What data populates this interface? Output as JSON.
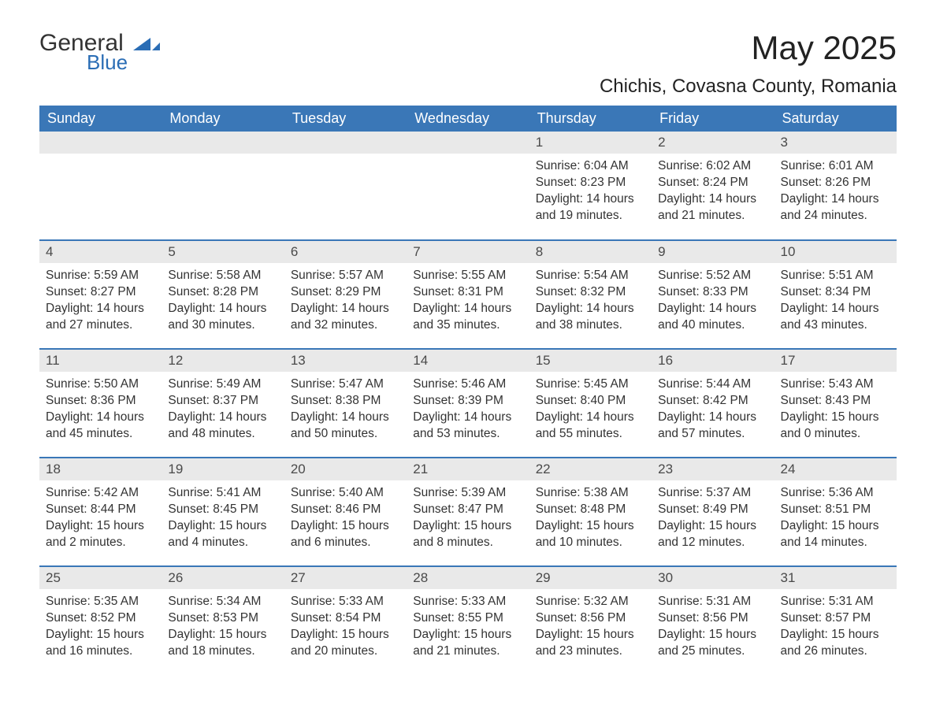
{
  "brand": {
    "name_main": "General",
    "name_sub": "Blue",
    "shape_color": "#2a6db5"
  },
  "title": {
    "month_year": "May 2025",
    "location": "Chichis, Covasna County, Romania"
  },
  "colors": {
    "header_bg": "#3a77b7",
    "header_text": "#ffffff",
    "daynum_bg": "#e9e9e9",
    "daynum_text": "#4a4a4a",
    "body_text": "#333333",
    "page_bg": "#ffffff",
    "week_border": "#3a77b7"
  },
  "weekdays": [
    "Sunday",
    "Monday",
    "Tuesday",
    "Wednesday",
    "Thursday",
    "Friday",
    "Saturday"
  ],
  "weeks": [
    [
      {
        "blank": true
      },
      {
        "blank": true
      },
      {
        "blank": true
      },
      {
        "blank": true
      },
      {
        "day": "1",
        "sunrise": "Sunrise: 6:04 AM",
        "sunset": "Sunset: 8:23 PM",
        "daylight": "Daylight: 14 hours and 19 minutes."
      },
      {
        "day": "2",
        "sunrise": "Sunrise: 6:02 AM",
        "sunset": "Sunset: 8:24 PM",
        "daylight": "Daylight: 14 hours and 21 minutes."
      },
      {
        "day": "3",
        "sunrise": "Sunrise: 6:01 AM",
        "sunset": "Sunset: 8:26 PM",
        "daylight": "Daylight: 14 hours and 24 minutes."
      }
    ],
    [
      {
        "day": "4",
        "sunrise": "Sunrise: 5:59 AM",
        "sunset": "Sunset: 8:27 PM",
        "daylight": "Daylight: 14 hours and 27 minutes."
      },
      {
        "day": "5",
        "sunrise": "Sunrise: 5:58 AM",
        "sunset": "Sunset: 8:28 PM",
        "daylight": "Daylight: 14 hours and 30 minutes."
      },
      {
        "day": "6",
        "sunrise": "Sunrise: 5:57 AM",
        "sunset": "Sunset: 8:29 PM",
        "daylight": "Daylight: 14 hours and 32 minutes."
      },
      {
        "day": "7",
        "sunrise": "Sunrise: 5:55 AM",
        "sunset": "Sunset: 8:31 PM",
        "daylight": "Daylight: 14 hours and 35 minutes."
      },
      {
        "day": "8",
        "sunrise": "Sunrise: 5:54 AM",
        "sunset": "Sunset: 8:32 PM",
        "daylight": "Daylight: 14 hours and 38 minutes."
      },
      {
        "day": "9",
        "sunrise": "Sunrise: 5:52 AM",
        "sunset": "Sunset: 8:33 PM",
        "daylight": "Daylight: 14 hours and 40 minutes."
      },
      {
        "day": "10",
        "sunrise": "Sunrise: 5:51 AM",
        "sunset": "Sunset: 8:34 PM",
        "daylight": "Daylight: 14 hours and 43 minutes."
      }
    ],
    [
      {
        "day": "11",
        "sunrise": "Sunrise: 5:50 AM",
        "sunset": "Sunset: 8:36 PM",
        "daylight": "Daylight: 14 hours and 45 minutes."
      },
      {
        "day": "12",
        "sunrise": "Sunrise: 5:49 AM",
        "sunset": "Sunset: 8:37 PM",
        "daylight": "Daylight: 14 hours and 48 minutes."
      },
      {
        "day": "13",
        "sunrise": "Sunrise: 5:47 AM",
        "sunset": "Sunset: 8:38 PM",
        "daylight": "Daylight: 14 hours and 50 minutes."
      },
      {
        "day": "14",
        "sunrise": "Sunrise: 5:46 AM",
        "sunset": "Sunset: 8:39 PM",
        "daylight": "Daylight: 14 hours and 53 minutes."
      },
      {
        "day": "15",
        "sunrise": "Sunrise: 5:45 AM",
        "sunset": "Sunset: 8:40 PM",
        "daylight": "Daylight: 14 hours and 55 minutes."
      },
      {
        "day": "16",
        "sunrise": "Sunrise: 5:44 AM",
        "sunset": "Sunset: 8:42 PM",
        "daylight": "Daylight: 14 hours and 57 minutes."
      },
      {
        "day": "17",
        "sunrise": "Sunrise: 5:43 AM",
        "sunset": "Sunset: 8:43 PM",
        "daylight": "Daylight: 15 hours and 0 minutes."
      }
    ],
    [
      {
        "day": "18",
        "sunrise": "Sunrise: 5:42 AM",
        "sunset": "Sunset: 8:44 PM",
        "daylight": "Daylight: 15 hours and 2 minutes."
      },
      {
        "day": "19",
        "sunrise": "Sunrise: 5:41 AM",
        "sunset": "Sunset: 8:45 PM",
        "daylight": "Daylight: 15 hours and 4 minutes."
      },
      {
        "day": "20",
        "sunrise": "Sunrise: 5:40 AM",
        "sunset": "Sunset: 8:46 PM",
        "daylight": "Daylight: 15 hours and 6 minutes."
      },
      {
        "day": "21",
        "sunrise": "Sunrise: 5:39 AM",
        "sunset": "Sunset: 8:47 PM",
        "daylight": "Daylight: 15 hours and 8 minutes."
      },
      {
        "day": "22",
        "sunrise": "Sunrise: 5:38 AM",
        "sunset": "Sunset: 8:48 PM",
        "daylight": "Daylight: 15 hours and 10 minutes."
      },
      {
        "day": "23",
        "sunrise": "Sunrise: 5:37 AM",
        "sunset": "Sunset: 8:49 PM",
        "daylight": "Daylight: 15 hours and 12 minutes."
      },
      {
        "day": "24",
        "sunrise": "Sunrise: 5:36 AM",
        "sunset": "Sunset: 8:51 PM",
        "daylight": "Daylight: 15 hours and 14 minutes."
      }
    ],
    [
      {
        "day": "25",
        "sunrise": "Sunrise: 5:35 AM",
        "sunset": "Sunset: 8:52 PM",
        "daylight": "Daylight: 15 hours and 16 minutes."
      },
      {
        "day": "26",
        "sunrise": "Sunrise: 5:34 AM",
        "sunset": "Sunset: 8:53 PM",
        "daylight": "Daylight: 15 hours and 18 minutes."
      },
      {
        "day": "27",
        "sunrise": "Sunrise: 5:33 AM",
        "sunset": "Sunset: 8:54 PM",
        "daylight": "Daylight: 15 hours and 20 minutes."
      },
      {
        "day": "28",
        "sunrise": "Sunrise: 5:33 AM",
        "sunset": "Sunset: 8:55 PM",
        "daylight": "Daylight: 15 hours and 21 minutes."
      },
      {
        "day": "29",
        "sunrise": "Sunrise: 5:32 AM",
        "sunset": "Sunset: 8:56 PM",
        "daylight": "Daylight: 15 hours and 23 minutes."
      },
      {
        "day": "30",
        "sunrise": "Sunrise: 5:31 AM",
        "sunset": "Sunset: 8:56 PM",
        "daylight": "Daylight: 15 hours and 25 minutes."
      },
      {
        "day": "31",
        "sunrise": "Sunrise: 5:31 AM",
        "sunset": "Sunset: 8:57 PM",
        "daylight": "Daylight: 15 hours and 26 minutes."
      }
    ]
  ]
}
